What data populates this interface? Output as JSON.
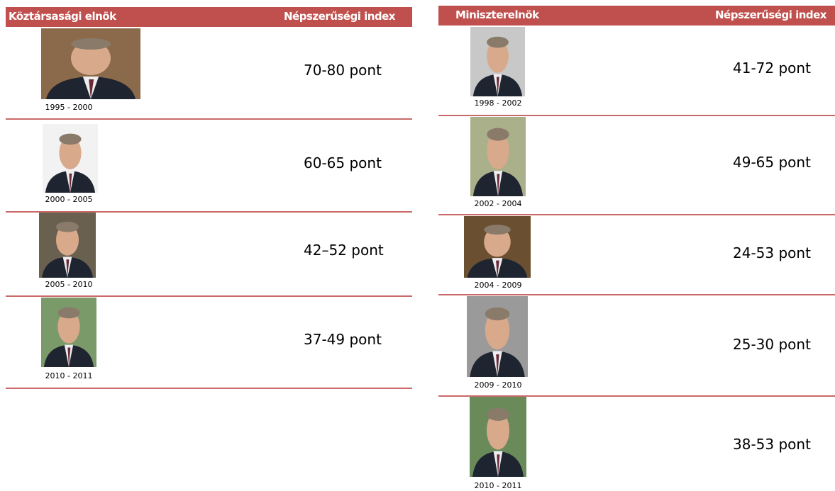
{
  "tables": [
    {
      "headers": [
        "Köztársasági elnök",
        "Népszerűségi index"
      ],
      "rows": [
        {
          "years": "1995 - 2000",
          "index": "70-80 pont"
        },
        {
          "years": "2000 - 2005",
          "index": "60-65 pont"
        },
        {
          "years": "2005 - 2010",
          "index": "42–52 pont"
        },
        {
          "years": "2010 - 2011",
          "index": "37-49 pont"
        }
      ]
    },
    {
      "headers": [
        "Miniszterelnök",
        "Népszerűségi index"
      ],
      "rows": [
        {
          "years": "1998 - 2002",
          "index": "41-72 pont"
        },
        {
          "years": "2002 - 2004",
          "index": "49-65 pont"
        },
        {
          "years": "2004 - 2009",
          "index": "24-53 pont"
        },
        {
          "years": "2009 - 2010",
          "index": "25-30 pont"
        },
        {
          "years": "2010 - 2011",
          "index": "38-53 pont"
        }
      ]
    }
  ]
}
